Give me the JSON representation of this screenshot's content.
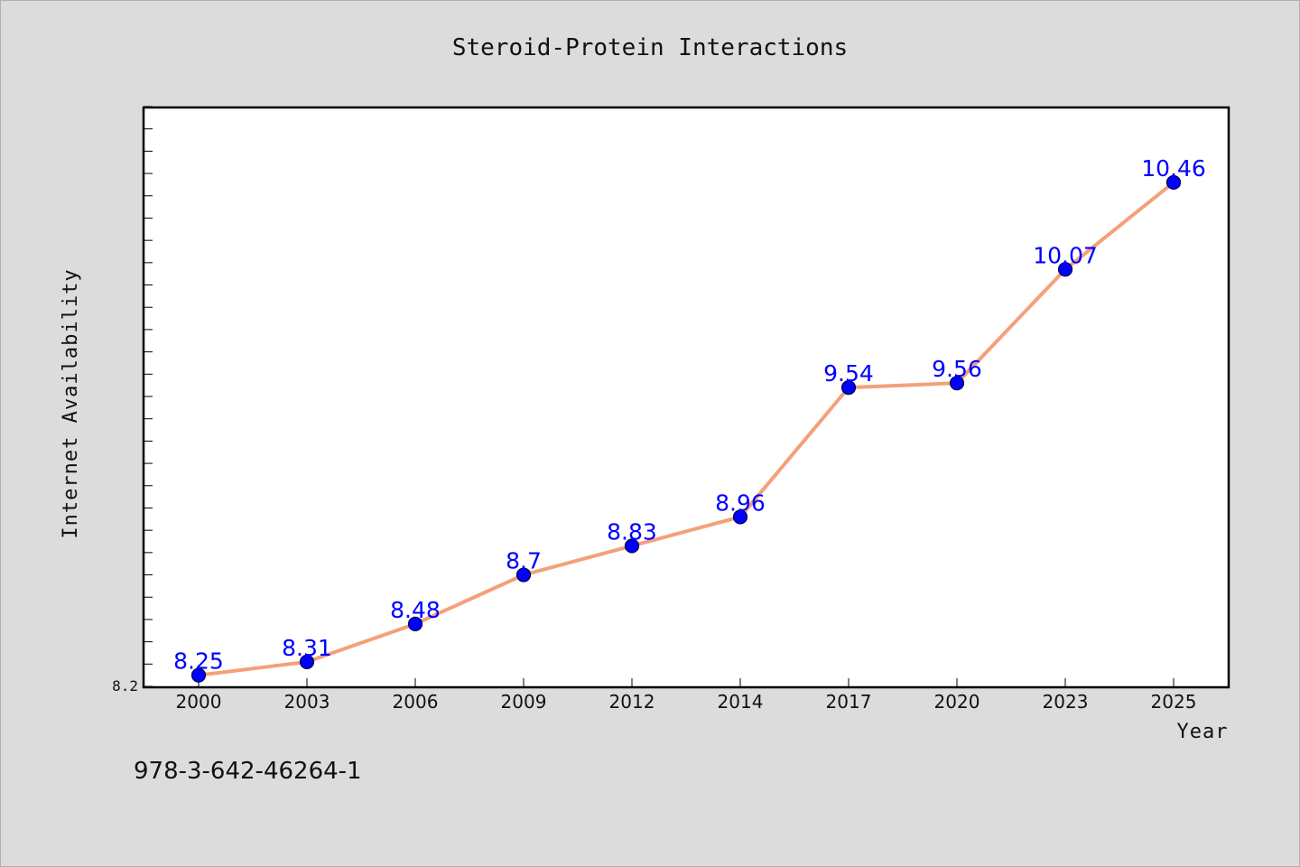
{
  "colors": {
    "background": "#dcdcdc",
    "plot_background": "#ffffff",
    "line": "#f4a07a",
    "marker_fill": "#0000ff",
    "marker_stroke": "#000044",
    "data_label": "#0000ff",
    "axis": "#000000"
  },
  "footer": {
    "isbn": "978-3-642-46264-1"
  },
  "chart_data": {
    "type": "line",
    "title": "Steroid-Protein Interactions",
    "xlabel": "Year",
    "ylabel": "Internet Availability",
    "categories": [
      "2000",
      "2003",
      "2006",
      "2009",
      "2012",
      "2014",
      "2017",
      "2020",
      "2023",
      "2025"
    ],
    "values": [
      8.25,
      8.31,
      8.48,
      8.7,
      8.83,
      8.96,
      9.54,
      9.56,
      10.07,
      10.46
    ],
    "data_labels": [
      "8.25",
      "8.31",
      "8.48",
      "8.7",
      "8.83",
      "8.96",
      "9.54",
      "9.56",
      "10.07",
      "10.46"
    ],
    "ylim": [
      8.2,
      10.8
    ],
    "y_tick_labels": [
      "8.2"
    ],
    "grid": false,
    "markers": true
  }
}
